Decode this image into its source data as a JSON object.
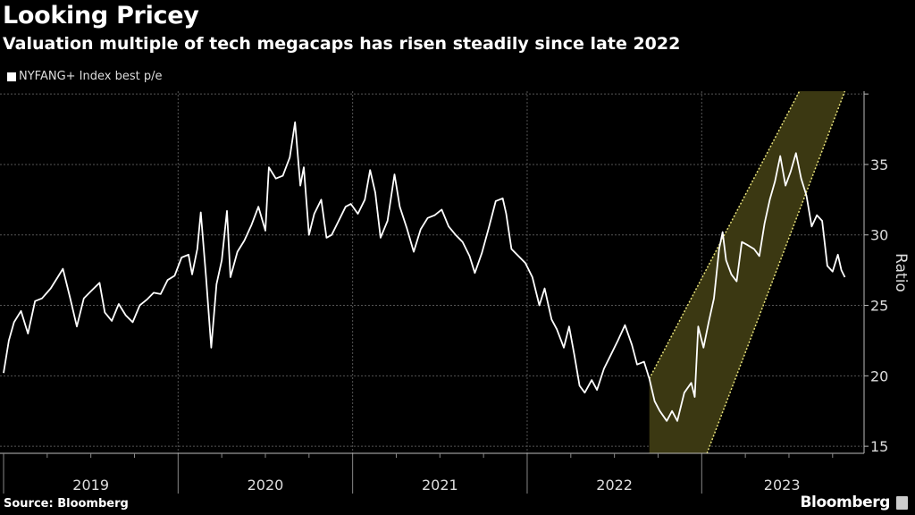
{
  "header": {
    "title": "Looking Pricey",
    "subtitle": "Valuation multiple of tech megacaps has risen steadily since late 2022"
  },
  "footer": {
    "source": "Source: Bloomberg",
    "brand": "Bloomberg"
  },
  "chart_data": {
    "type": "line",
    "title": "Looking Pricey",
    "subtitle": "Valuation multiple of tech megacaps has risen steadily since late 2022",
    "ylabel": "Ratio",
    "xlabel": "",
    "ylim": [
      14.5,
      40.2
    ],
    "xlim": [
      2019.0,
      2023.92
    ],
    "yticks": [
      15,
      20,
      25,
      30,
      35
    ],
    "xtick_labels": [
      "2019",
      "2020",
      "2021",
      "2022",
      "2023"
    ],
    "grid": true,
    "y_axis_side": "right",
    "legend_position": "top-left",
    "colors": {
      "line": "#ffffff",
      "band_fill": "#3b3812",
      "band_edge": "#e8e27a",
      "grid": "#555555"
    },
    "series": [
      {
        "name": "NYFANG+ Index best p/e",
        "points": [
          [
            2019.0,
            20.2
          ],
          [
            2019.03,
            22.5
          ],
          [
            2019.06,
            23.8
          ],
          [
            2019.1,
            24.6
          ],
          [
            2019.14,
            23.0
          ],
          [
            2019.18,
            25.3
          ],
          [
            2019.22,
            25.5
          ],
          [
            2019.27,
            26.2
          ],
          [
            2019.31,
            27.0
          ],
          [
            2019.34,
            27.6
          ],
          [
            2019.38,
            25.6
          ],
          [
            2019.42,
            23.5
          ],
          [
            2019.46,
            25.5
          ],
          [
            2019.5,
            26.0
          ],
          [
            2019.55,
            26.6
          ],
          [
            2019.58,
            24.5
          ],
          [
            2019.62,
            23.9
          ],
          [
            2019.66,
            25.1
          ],
          [
            2019.7,
            24.3
          ],
          [
            2019.74,
            23.8
          ],
          [
            2019.78,
            25.0
          ],
          [
            2019.82,
            25.4
          ],
          [
            2019.86,
            25.9
          ],
          [
            2019.9,
            25.8
          ],
          [
            2019.94,
            26.8
          ],
          [
            2019.98,
            27.1
          ],
          [
            2020.02,
            28.4
          ],
          [
            2020.06,
            28.6
          ],
          [
            2020.08,
            27.2
          ],
          [
            2020.11,
            29.0
          ],
          [
            2020.13,
            31.6
          ],
          [
            2020.16,
            27.0
          ],
          [
            2020.19,
            22.0
          ],
          [
            2020.22,
            26.5
          ],
          [
            2020.25,
            28.2
          ],
          [
            2020.28,
            31.7
          ],
          [
            2020.3,
            27.0
          ],
          [
            2020.34,
            28.8
          ],
          [
            2020.38,
            29.6
          ],
          [
            2020.42,
            30.7
          ],
          [
            2020.46,
            32.0
          ],
          [
            2020.5,
            30.3
          ],
          [
            2020.52,
            34.8
          ],
          [
            2020.56,
            34.0
          ],
          [
            2020.6,
            34.2
          ],
          [
            2020.64,
            35.5
          ],
          [
            2020.67,
            38.0
          ],
          [
            2020.7,
            33.5
          ],
          [
            2020.72,
            34.8
          ],
          [
            2020.75,
            30.0
          ],
          [
            2020.78,
            31.5
          ],
          [
            2020.82,
            32.5
          ],
          [
            2020.85,
            29.8
          ],
          [
            2020.88,
            30.0
          ],
          [
            2020.92,
            31.0
          ],
          [
            2020.96,
            32.0
          ],
          [
            2020.99,
            32.2
          ],
          [
            2021.03,
            31.5
          ],
          [
            2021.07,
            32.5
          ],
          [
            2021.1,
            34.6
          ],
          [
            2021.13,
            33.0
          ],
          [
            2021.16,
            29.8
          ],
          [
            2021.2,
            31.0
          ],
          [
            2021.24,
            34.3
          ],
          [
            2021.27,
            32.0
          ],
          [
            2021.31,
            30.5
          ],
          [
            2021.35,
            28.8
          ],
          [
            2021.39,
            30.4
          ],
          [
            2021.43,
            31.2
          ],
          [
            2021.47,
            31.4
          ],
          [
            2021.51,
            31.8
          ],
          [
            2021.55,
            30.6
          ],
          [
            2021.59,
            30.0
          ],
          [
            2021.63,
            29.5
          ],
          [
            2021.67,
            28.5
          ],
          [
            2021.7,
            27.3
          ],
          [
            2021.74,
            28.7
          ],
          [
            2021.78,
            30.5
          ],
          [
            2021.82,
            32.4
          ],
          [
            2021.86,
            32.6
          ],
          [
            2021.88,
            31.5
          ],
          [
            2021.91,
            29.0
          ],
          [
            2021.95,
            28.5
          ],
          [
            2021.99,
            28.0
          ],
          [
            2022.03,
            27.0
          ],
          [
            2022.07,
            25.0
          ],
          [
            2022.1,
            26.2
          ],
          [
            2022.14,
            24.0
          ],
          [
            2022.17,
            23.3
          ],
          [
            2022.21,
            22.0
          ],
          [
            2022.24,
            23.5
          ],
          [
            2022.27,
            21.5
          ],
          [
            2022.3,
            19.3
          ],
          [
            2022.33,
            18.8
          ],
          [
            2022.37,
            19.7
          ],
          [
            2022.4,
            19.0
          ],
          [
            2022.44,
            20.5
          ],
          [
            2022.48,
            21.5
          ],
          [
            2022.52,
            22.5
          ],
          [
            2022.56,
            23.6
          ],
          [
            2022.6,
            22.2
          ],
          [
            2022.63,
            20.8
          ],
          [
            2022.67,
            21.0
          ],
          [
            2022.7,
            19.8
          ],
          [
            2022.73,
            18.2
          ],
          [
            2022.76,
            17.5
          ],
          [
            2022.8,
            16.8
          ],
          [
            2022.83,
            17.5
          ],
          [
            2022.86,
            16.8
          ],
          [
            2022.9,
            18.8
          ],
          [
            2022.94,
            19.5
          ],
          [
            2022.96,
            18.5
          ],
          [
            2022.98,
            23.5
          ],
          [
            2023.01,
            22.0
          ],
          [
            2023.04,
            23.8
          ],
          [
            2023.07,
            25.5
          ],
          [
            2023.1,
            29.0
          ],
          [
            2023.12,
            30.2
          ],
          [
            2023.14,
            28.2
          ],
          [
            2023.17,
            27.2
          ],
          [
            2023.2,
            26.7
          ],
          [
            2023.23,
            29.5
          ],
          [
            2023.26,
            29.3
          ],
          [
            2023.3,
            29.0
          ],
          [
            2023.33,
            28.5
          ],
          [
            2023.36,
            30.8
          ],
          [
            2023.39,
            32.5
          ],
          [
            2023.42,
            33.8
          ],
          [
            2023.45,
            35.6
          ],
          [
            2023.48,
            33.5
          ],
          [
            2023.51,
            34.5
          ],
          [
            2023.54,
            35.8
          ],
          [
            2023.57,
            34.0
          ],
          [
            2023.6,
            32.8
          ],
          [
            2023.63,
            30.6
          ],
          [
            2023.66,
            31.4
          ],
          [
            2023.69,
            31.0
          ],
          [
            2023.72,
            27.8
          ],
          [
            2023.75,
            27.4
          ],
          [
            2023.78,
            28.6
          ],
          [
            2023.8,
            27.5
          ],
          [
            2023.82,
            27.0
          ]
        ]
      }
    ],
    "annotations": [
      {
        "type": "trend-channel",
        "lower_left": [
          2022.7,
          14.5
        ],
        "upper_left": [
          2022.7,
          19.8
        ],
        "upper_right": [
          2023.56,
          40.2
        ],
        "lower_right": [
          2023.82,
          40.2
        ],
        "bottom_right": [
          2023.03,
          14.5
        ]
      }
    ]
  }
}
